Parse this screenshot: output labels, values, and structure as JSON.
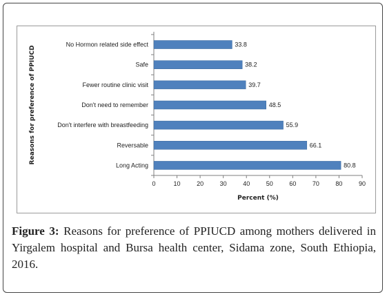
{
  "chart_data": {
    "type": "bar",
    "orientation": "horizontal",
    "categories": [
      "No Hormon related side effect",
      "Safe",
      "Fewer routine clinic visit",
      "Don't need to remember",
      "Don't interfere with breastfeeding",
      "Reversable",
      "Long Acting"
    ],
    "values": [
      33.8,
      38.2,
      39.7,
      48.5,
      55.9,
      66.1,
      80.8
    ],
    "value_labels": [
      "33.8",
      "38.2",
      "39.7",
      "48.5",
      "55.9",
      "66.1",
      "80.8"
    ],
    "xlabel": "Percent (%)",
    "ylabel": "Reasons for preference of PPIUCD",
    "xlim": [
      0,
      90
    ],
    "xticks": [
      "0",
      "10",
      "20",
      "30",
      "40",
      "50",
      "60",
      "70",
      "80",
      "90"
    ],
    "grid": false,
    "legend": "none",
    "bar_color": "#4f81bd"
  },
  "caption": {
    "label": "Figure 3:",
    "text": " Reasons for preference of PPIUCD among mothers delivered in Yirgalem hospital and Bursa health center, Sidama zone, South Ethiopia, 2016."
  }
}
